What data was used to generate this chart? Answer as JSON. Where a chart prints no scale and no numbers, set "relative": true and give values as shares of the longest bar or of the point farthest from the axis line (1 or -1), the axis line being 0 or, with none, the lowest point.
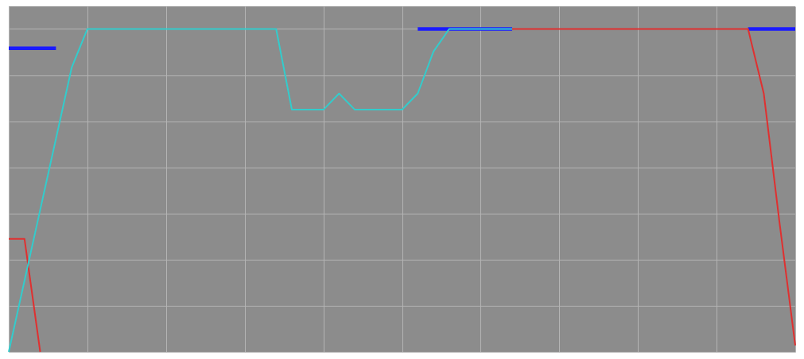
{
  "chart_data": {
    "type": "line",
    "relative": true,
    "grid": true,
    "marker": "none",
    "line_style": "solid",
    "categories": [
      null,
      null,
      null,
      null,
      null,
      null,
      null,
      null,
      null,
      null,
      null,
      null,
      null,
      null,
      null,
      null,
      null,
      null,
      null,
      null,
      null,
      null,
      null,
      null,
      null,
      null,
      null,
      null,
      null,
      null,
      null,
      null,
      null,
      null,
      null,
      null,
      null,
      null,
      null,
      null,
      null,
      null,
      null,
      null,
      null,
      null,
      null,
      null,
      null,
      null,
      null
    ],
    "series": [
      {
        "color": "#1a1aff",
        "values": [
          0.94,
          0.94,
          0.94,
          0.94,
          null,
          null,
          null,
          null,
          null,
          null,
          null,
          null,
          null,
          null,
          null,
          null,
          null,
          null,
          null,
          null,
          null,
          null,
          null,
          null,
          null,
          null,
          1,
          1,
          1,
          1,
          1,
          1,
          1,
          null,
          null,
          null,
          null,
          null,
          null,
          null,
          null,
          null,
          null,
          null,
          null,
          null,
          null,
          1,
          1,
          1,
          1
        ]
      },
      {
        "color": "#e03030",
        "values": [
          0.35,
          0.35,
          0,
          null,
          null,
          null,
          null,
          null,
          null,
          null,
          null,
          null,
          null,
          null,
          null,
          null,
          null,
          null,
          null,
          null,
          null,
          null,
          null,
          null,
          null,
          null,
          null,
          null,
          null,
          null,
          null,
          null,
          1,
          1,
          1,
          1,
          1,
          1,
          1,
          1,
          1,
          1,
          1,
          1,
          1,
          1,
          1,
          1,
          0.8,
          0.4,
          0.02
        ]
      },
      {
        "color": "#33cccc",
        "values": [
          0,
          0.22,
          0.44,
          0.66,
          0.88,
          1,
          1,
          1,
          1,
          1,
          1,
          1,
          1,
          1,
          1,
          1,
          1,
          1,
          0.75,
          0.75,
          0.75,
          0.8,
          0.75,
          0.75,
          0.75,
          0.75,
          0.8,
          0.93,
          1,
          1,
          1,
          1,
          1,
          null,
          null,
          null,
          null,
          null,
          null,
          null,
          null,
          null,
          null,
          null,
          null,
          null,
          null,
          null,
          null,
          null,
          null
        ]
      }
    ]
  }
}
